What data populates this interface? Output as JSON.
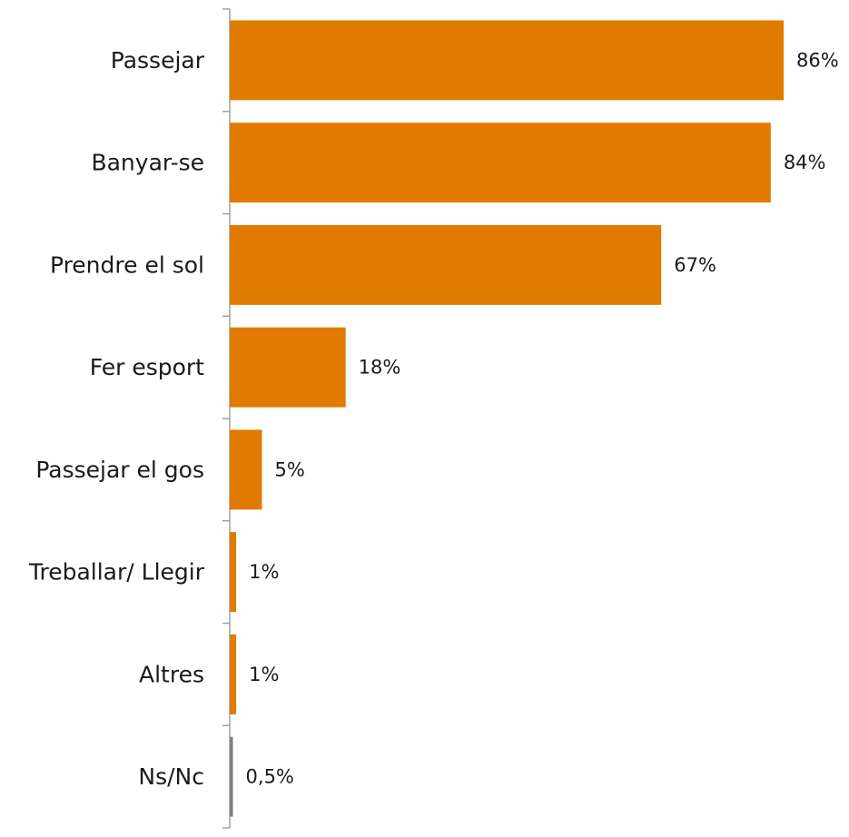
{
  "chart_data": {
    "type": "bar",
    "orientation": "horizontal",
    "title": "",
    "xlabel": "",
    "ylabel": "",
    "categories": [
      "Passejar",
      "Banyar-se",
      "Prendre el sol",
      "Fer esport",
      "Passejar el gos",
      "Treballar/ Llegir",
      "Altres",
      "Ns/Nc"
    ],
    "values": [
      86,
      84,
      67,
      18,
      5,
      1,
      1,
      0.5
    ],
    "value_labels": [
      "86%",
      "84%",
      "67%",
      "18%",
      "5%",
      "1%",
      "1%",
      "0,5%"
    ],
    "xlim": [
      0,
      100
    ],
    "grid": false,
    "legend": "none",
    "colors": {
      "bar": "#e07b00",
      "bar_last": "#808080",
      "axis": "#a0a0a0"
    }
  }
}
